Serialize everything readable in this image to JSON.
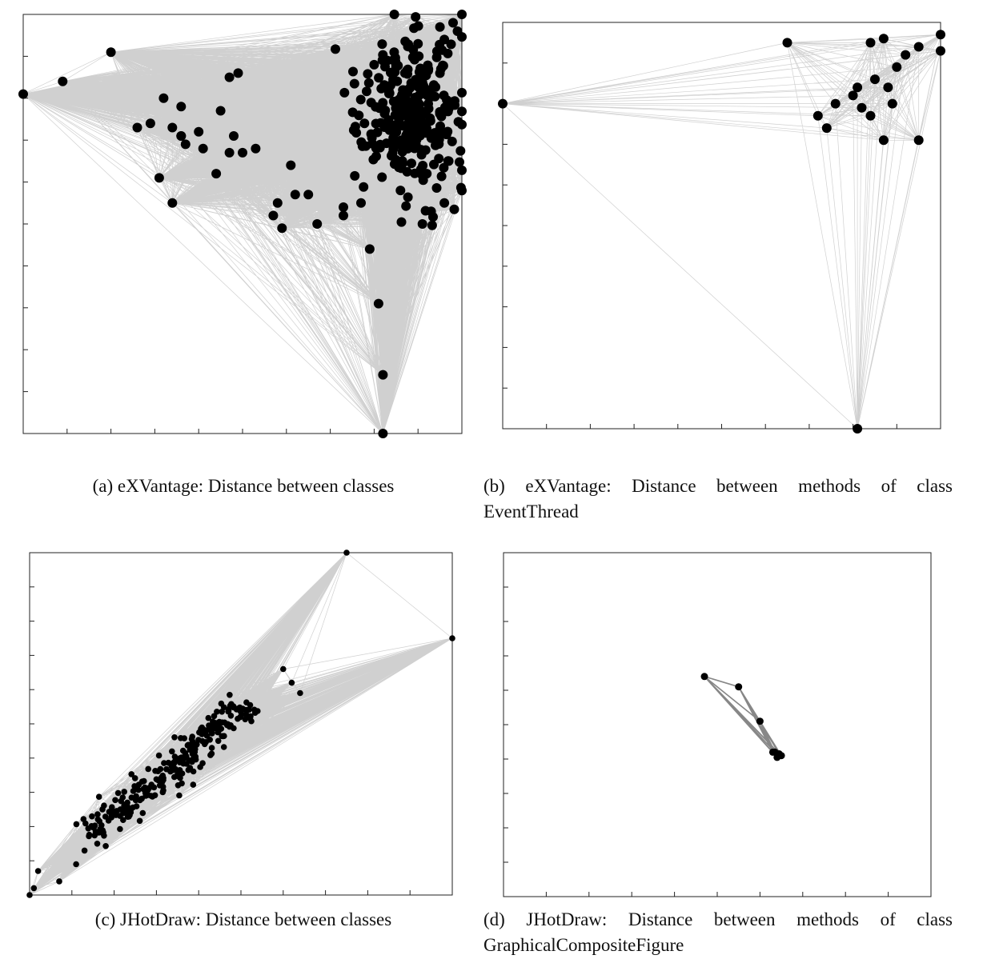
{
  "figure": {
    "captions": [
      "(a) eXVantage: Distance between classes",
      "(b) eXVantage: Distance between methods of class EventThread",
      "(c) JHotDraw: Distance between classes",
      "(d) JHotDraw: Distance between methods of class GraphicalCompositeFigure"
    ]
  },
  "colors": {
    "edge": "#c8c8c8",
    "edge_dark": "#7a7a7a",
    "node": "#000000",
    "frame": "#222222"
  },
  "chart_data": [
    {
      "id": "a",
      "type": "scatter",
      "title": "(a) eXVantage: Distance between classes",
      "xlabel": "",
      "ylabel": "",
      "xlim": [
        0,
        1
      ],
      "ylim": [
        0,
        1
      ],
      "x_ticks": [
        0,
        0.1,
        0.2,
        0.3,
        0.4,
        0.5,
        0.6,
        0.7,
        0.8,
        0.9,
        1
      ],
      "y_ticks": [
        0,
        0.1,
        0.2,
        0.3,
        0.4,
        0.5,
        0.6,
        0.7,
        0.8,
        0.9,
        1
      ],
      "tick_labels_shown": false,
      "edges": "all-pairs",
      "node_radius": 6,
      "points": [
        [
          0.0,
          0.81
        ],
        [
          0.09,
          0.84
        ],
        [
          0.2,
          0.91
        ],
        [
          0.82,
          0.0
        ],
        [
          0.82,
          0.14
        ],
        [
          0.81,
          0.31
        ],
        [
          0.79,
          0.44
        ],
        [
          0.59,
          0.49
        ],
        [
          0.67,
          0.5
        ],
        [
          0.73,
          0.52
        ],
        [
          0.31,
          0.61
        ],
        [
          0.44,
          0.62
        ],
        [
          0.34,
          0.73
        ],
        [
          0.36,
          0.71
        ],
        [
          0.37,
          0.69
        ],
        [
          0.4,
          0.72
        ],
        [
          0.48,
          0.71
        ],
        [
          0.5,
          0.67
        ],
        [
          0.45,
          0.77
        ],
        [
          0.47,
          0.85
        ],
        [
          0.49,
          0.86
        ],
        [
          0.32,
          0.8
        ],
        [
          0.36,
          0.78
        ],
        [
          0.26,
          0.73
        ],
        [
          0.29,
          0.74
        ],
        [
          0.36,
          0.71
        ],
        [
          0.41,
          0.68
        ],
        [
          0.47,
          0.67
        ],
        [
          0.53,
          0.68
        ],
        [
          0.61,
          0.64
        ],
        [
          0.62,
          0.57
        ],
        [
          0.65,
          0.57
        ],
        [
          0.73,
          0.54
        ],
        [
          0.77,
          0.55
        ],
        [
          0.58,
          0.55
        ],
        [
          0.34,
          0.55
        ],
        [
          0.57,
          0.52
        ],
        [
          0.86,
          0.58
        ],
        [
          0.91,
          0.5
        ],
        [
          0.93,
          0.53
        ],
        [
          0.96,
          0.55
        ],
        [
          0.97,
          0.65
        ],
        [
          0.92,
          0.62
        ],
        [
          0.8,
          0.88
        ],
        [
          0.83,
          0.89
        ],
        [
          0.87,
          0.86
        ],
        [
          0.9,
          0.93
        ],
        [
          0.95,
          0.97
        ],
        [
          0.98,
          0.98
        ],
        [
          1.0,
          1.0
        ],
        [
          0.99,
          0.96
        ],
        [
          0.96,
          0.94
        ]
      ],
      "cluster": {
        "center": [
          0.88,
          0.76
        ],
        "spread": [
          0.1,
          0.16
        ],
        "count": 300
      }
    },
    {
      "id": "b",
      "type": "scatter",
      "title": "(b) eXVantage: Distance between methods of class EventThread",
      "xlabel": "",
      "ylabel": "",
      "xlim": [
        0,
        1
      ],
      "ylim": [
        0,
        1
      ],
      "x_ticks": [
        0,
        0.1,
        0.2,
        0.3,
        0.4,
        0.5,
        0.6,
        0.7,
        0.8,
        0.9,
        1
      ],
      "y_ticks": [
        0,
        0.1,
        0.2,
        0.3,
        0.4,
        0.5,
        0.6,
        0.7,
        0.8,
        0.9,
        1
      ],
      "tick_labels_shown": false,
      "edges": "all-pairs",
      "node_radius": 6,
      "points": [
        [
          0.0,
          0.8
        ],
        [
          0.81,
          0.0
        ],
        [
          0.65,
          0.95
        ],
        [
          0.84,
          0.95
        ],
        [
          0.87,
          0.96
        ],
        [
          0.92,
          0.92
        ],
        [
          0.95,
          0.94
        ],
        [
          1.0,
          0.97
        ],
        [
          1.0,
          0.93
        ],
        [
          0.9,
          0.89
        ],
        [
          0.85,
          0.86
        ],
        [
          0.88,
          0.84
        ],
        [
          0.8,
          0.82
        ],
        [
          0.76,
          0.8
        ],
        [
          0.82,
          0.79
        ],
        [
          0.89,
          0.8
        ],
        [
          0.72,
          0.77
        ],
        [
          0.74,
          0.74
        ],
        [
          0.84,
          0.77
        ],
        [
          0.87,
          0.71
        ],
        [
          0.95,
          0.71
        ],
        [
          0.81,
          0.84
        ]
      ]
    },
    {
      "id": "c",
      "type": "scatter",
      "title": "(c) JHotDraw: Distance between classes",
      "xlabel": "",
      "ylabel": "",
      "xlim": [
        0,
        1
      ],
      "ylim": [
        0,
        1
      ],
      "x_ticks": [
        0,
        0.1,
        0.2,
        0.3,
        0.4,
        0.5,
        0.6,
        0.7,
        0.8,
        0.9,
        1
      ],
      "y_ticks": [
        0,
        0.1,
        0.2,
        0.3,
        0.4,
        0.5,
        0.6,
        0.7,
        0.8,
        0.9,
        1
      ],
      "tick_labels_shown": false,
      "edges": "all-pairs",
      "node_radius": 3.8,
      "points": [
        [
          0.0,
          0.0
        ],
        [
          0.75,
          1.0
        ],
        [
          1.0,
          0.75
        ],
        [
          0.6,
          0.66
        ],
        [
          0.62,
          0.62
        ],
        [
          0.64,
          0.59
        ],
        [
          0.01,
          0.02
        ],
        [
          0.02,
          0.07
        ],
        [
          0.07,
          0.04
        ],
        [
          0.11,
          0.09
        ],
        [
          0.13,
          0.13
        ],
        [
          0.16,
          0.15
        ]
      ],
      "cluster": {
        "axis_start": [
          0.14,
          0.17
        ],
        "axis_end": [
          0.52,
          0.56
        ],
        "width": 0.05,
        "count": 260
      }
    },
    {
      "id": "d",
      "type": "scatter",
      "title": "(d) JHotDraw: Distance between methods of class GraphicalCompositeFigure",
      "xlabel": "",
      "ylabel": "",
      "xlim": [
        0,
        1
      ],
      "ylim": [
        0,
        1
      ],
      "x_ticks": [
        0,
        0.1,
        0.2,
        0.3,
        0.4,
        0.5,
        0.6,
        0.7,
        0.8,
        0.9,
        1
      ],
      "y_ticks": [
        0,
        0.1,
        0.2,
        0.3,
        0.4,
        0.5,
        0.6,
        0.7,
        0.8,
        0.9,
        1
      ],
      "tick_labels_shown": false,
      "edges": "all-pairs",
      "edge_color": "dark",
      "node_radius": 4.5,
      "points": [
        [
          0.47,
          0.64
        ],
        [
          0.55,
          0.61
        ],
        [
          0.6,
          0.51
        ],
        [
          0.63,
          0.42
        ],
        [
          0.645,
          0.415
        ],
        [
          0.64,
          0.405
        ],
        [
          0.65,
          0.41
        ],
        [
          0.635,
          0.42
        ]
      ]
    }
  ]
}
